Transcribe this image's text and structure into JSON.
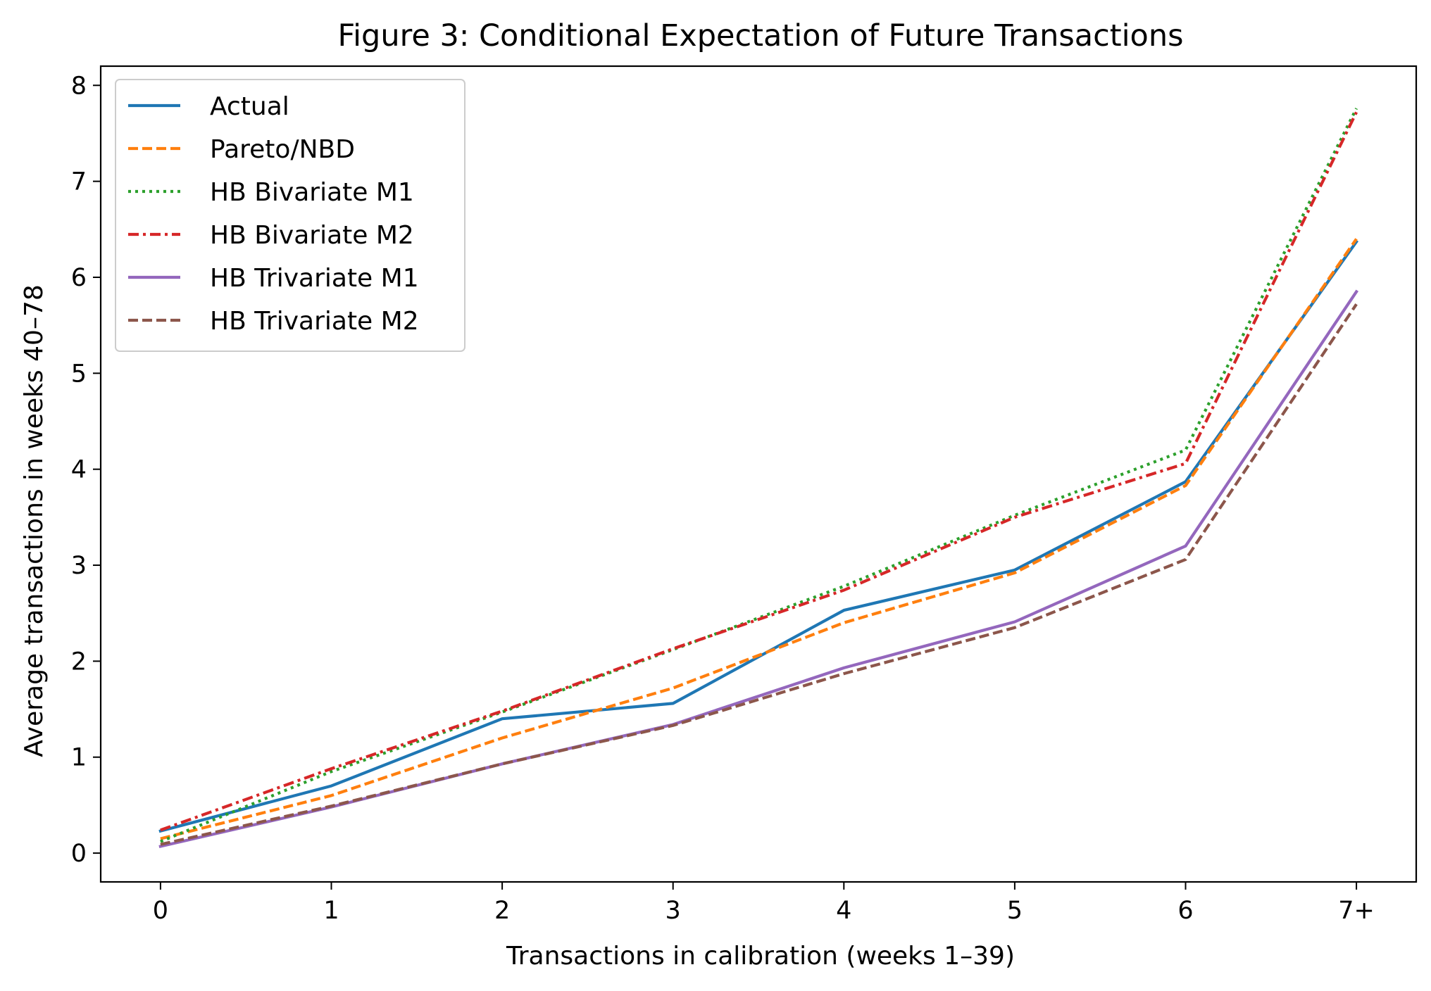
{
  "chart_data": {
    "type": "line",
    "title": "Figure 3: Conditional Expectation of Future Transactions",
    "xlabel": "Transactions in calibration (weeks 1–39)",
    "ylabel": "Average transactions in weeks 40–78",
    "categories": [
      "0",
      "1",
      "2",
      "3",
      "4",
      "5",
      "6",
      "7+"
    ],
    "yticks": [
      "0",
      "1",
      "2",
      "3",
      "4",
      "5",
      "6",
      "7",
      "8"
    ],
    "ylim": [
      -0.3,
      8.2
    ],
    "xlim": [
      -0.35,
      7.35
    ],
    "grid": false,
    "legend_position": "top-left",
    "series": [
      {
        "name": "Actual",
        "color": "#1f77b4",
        "dash": "solid",
        "values": [
          0.23,
          0.7,
          1.4,
          1.56,
          2.53,
          2.95,
          3.87,
          6.37
        ]
      },
      {
        "name": "Pareto/NBD",
        "color": "#ff7f0e",
        "dash": "dashed",
        "values": [
          0.15,
          0.6,
          1.2,
          1.72,
          2.4,
          2.92,
          3.83,
          6.4
        ]
      },
      {
        "name": "HB Bivariate M1",
        "color": "#2ca02c",
        "dash": "dotted",
        "values": [
          0.12,
          0.85,
          1.47,
          2.12,
          2.78,
          3.52,
          4.2,
          7.76
        ]
      },
      {
        "name": "HB Bivariate M2",
        "color": "#d62728",
        "dash": "dashdot",
        "values": [
          0.24,
          0.88,
          1.48,
          2.13,
          2.74,
          3.5,
          4.06,
          7.72
        ]
      },
      {
        "name": "HB Trivariate M1",
        "color": "#9467bd",
        "dash": "solid",
        "values": [
          0.07,
          0.48,
          0.93,
          1.34,
          1.93,
          2.41,
          3.2,
          5.85
        ]
      },
      {
        "name": "HB Trivariate M2",
        "color": "#8c564b",
        "dash": "dashed",
        "values": [
          0.09,
          0.49,
          0.93,
          1.33,
          1.87,
          2.35,
          3.06,
          5.72
        ]
      }
    ]
  }
}
